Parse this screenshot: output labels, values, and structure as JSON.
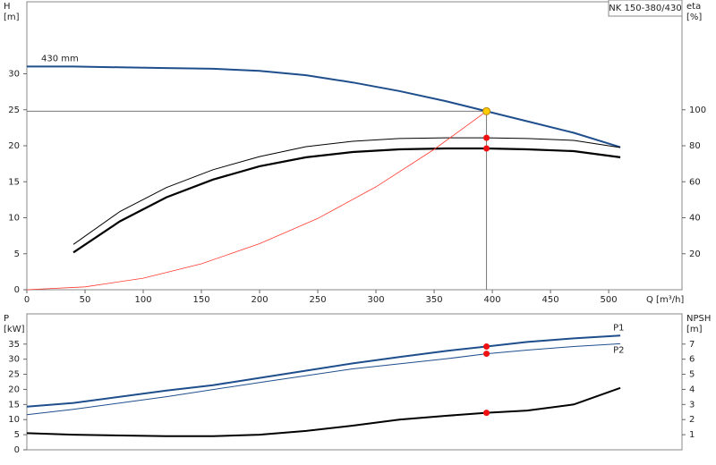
{
  "chart_data": [
    {
      "type": "line",
      "title": "NK 150-380/430",
      "annotation": "430 mm",
      "ylabel": [
        "H",
        "[m]"
      ],
      "y2label": [
        "eta",
        "[%]"
      ],
      "xlabel": "Q [m³/h]",
      "xlim": [
        0,
        563
      ],
      "xticks": [
        0,
        50,
        100,
        150,
        200,
        250,
        300,
        350,
        400,
        450,
        500
      ],
      "ylim": [
        0,
        40
      ],
      "yticks": [
        0,
        5,
        10,
        15,
        20,
        25,
        30
      ],
      "y2lim": [
        0,
        160
      ],
      "y2ticks": [
        20,
        40,
        60,
        80,
        100
      ],
      "series": [
        {
          "color": "#1f4e8c",
          "line_width": 2,
          "axis": "y",
          "x": [
            0,
            40,
            80,
            120,
            160,
            200,
            240,
            280,
            320,
            360,
            395,
            430,
            470,
            510
          ],
          "values": [
            31,
            31,
            30.9,
            30.8,
            30.7,
            30.4,
            29.8,
            28.8,
            27.6,
            26.2,
            24.8,
            23.4,
            21.8,
            19.8
          ]
        },
        {
          "color": "#000000",
          "line_width": 1,
          "axis": "y2",
          "x": [
            40,
            80,
            120,
            160,
            200,
            240,
            280,
            320,
            360,
            395,
            430,
            470,
            510
          ],
          "values": [
            25.2,
            43.5,
            56.8,
            66.7,
            74,
            79.5,
            82.5,
            84,
            84.4,
            84.4,
            84,
            83,
            79
          ]
        },
        {
          "color": "#000000",
          "line_width": 2.2,
          "axis": "y2",
          "x": [
            40,
            80,
            120,
            160,
            200,
            240,
            280,
            320,
            360,
            395,
            430,
            470,
            510
          ],
          "values": [
            20.7,
            38,
            51.4,
            61.2,
            68.6,
            73.6,
            76.5,
            78,
            78.5,
            78.5,
            78,
            77,
            73.6
          ]
        },
        {
          "color": "#ff3b30",
          "line_width": 0.8,
          "axis": "y",
          "x": [
            0,
            50,
            100,
            150,
            200,
            250,
            300,
            350,
            395
          ],
          "values": [
            0,
            0.4,
            1.6,
            3.6,
            6.4,
            9.9,
            14.3,
            19.5,
            24.8
          ]
        }
      ],
      "duty_point": {
        "x": 395,
        "y": 24.8,
        "color": "#ffcc00"
      },
      "points": [
        {
          "x": 395,
          "y": 84.4,
          "axis": "y2",
          "color": "#ee1111"
        },
        {
          "x": 395,
          "y": 78.5,
          "axis": "y2",
          "color": "#ee1111"
        }
      ]
    },
    {
      "type": "line",
      "ylabel": [
        "P",
        "[kW]"
      ],
      "y2label": [
        "NPSH",
        "[m]"
      ],
      "xlim": [
        0,
        563
      ],
      "ylim": [
        0,
        45
      ],
      "yticks": [
        0,
        5,
        10,
        15,
        20,
        25,
        30,
        35
      ],
      "y2lim": [
        0,
        9
      ],
      "y2ticks": [
        1,
        2,
        3,
        4,
        5,
        6,
        7
      ],
      "series": [
        {
          "name": "P1",
          "color": "#1f4e8c",
          "line_width": 2,
          "axis": "y",
          "x": [
            0,
            40,
            120,
            160,
            200,
            240,
            280,
            320,
            360,
            395,
            430,
            470,
            510
          ],
          "values": [
            14.3,
            15.5,
            19.6,
            21.4,
            23.8,
            26.2,
            28.6,
            30.7,
            32.7,
            34.2,
            35.7,
            36.9,
            37.8
          ]
        },
        {
          "name": "P2",
          "color": "#1f4e8c",
          "line_width": 1,
          "axis": "y",
          "x": [
            0,
            40,
            120,
            200,
            280,
            360,
            395,
            430,
            470,
            510
          ],
          "values": [
            11.6,
            13.4,
            17.6,
            22.3,
            26.8,
            30.1,
            31.8,
            33,
            34.2,
            35.1
          ]
        },
        {
          "color": "#000000",
          "line_width": 2,
          "axis": "y2",
          "x": [
            0,
            40,
            120,
            160,
            200,
            240,
            280,
            320,
            360,
            395,
            430,
            470,
            510
          ],
          "values": [
            1.1,
            1.0,
            0.9,
            0.9,
            1.0,
            1.25,
            1.6,
            2.0,
            2.25,
            2.45,
            2.6,
            3.0,
            4.1
          ]
        }
      ],
      "points": [
        {
          "x": 395,
          "y": 34.2,
          "axis": "y",
          "color": "#ee1111"
        },
        {
          "x": 395,
          "y": 31.8,
          "axis": "y",
          "color": "#ee1111"
        },
        {
          "x": 395,
          "y": 2.45,
          "axis": "y2",
          "color": "#ee1111"
        }
      ]
    }
  ]
}
